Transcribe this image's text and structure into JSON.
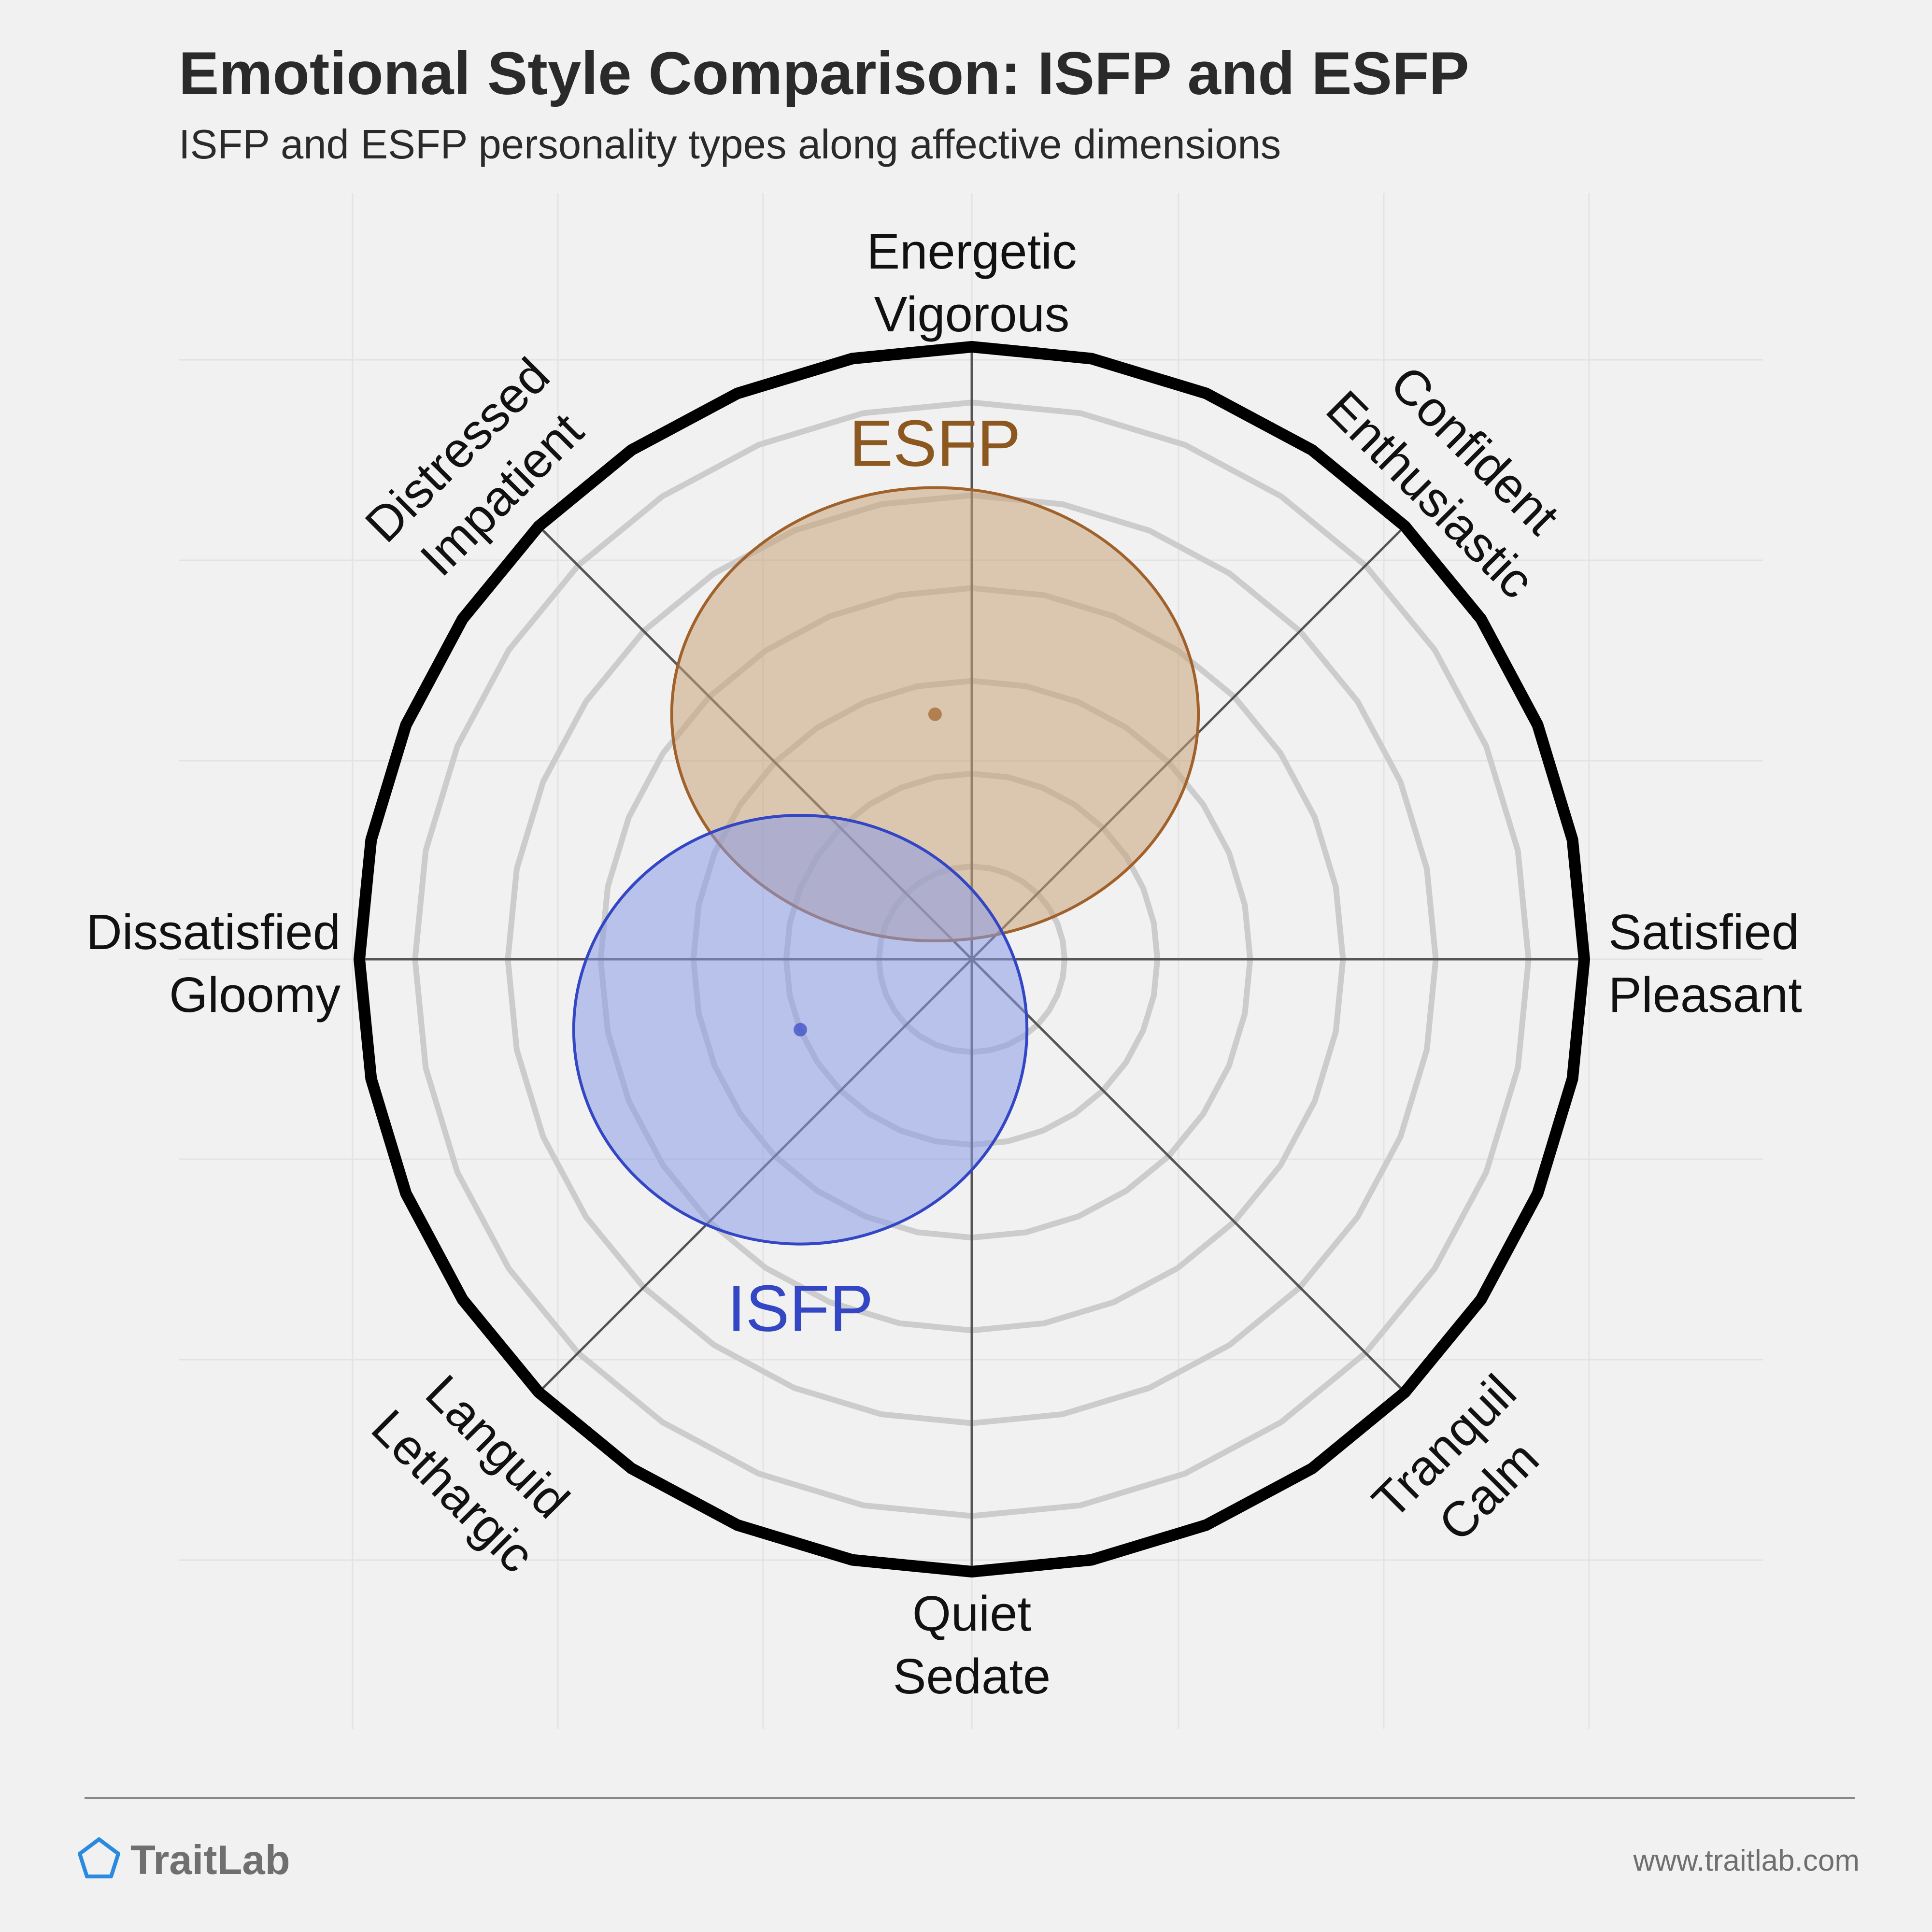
{
  "header": {
    "title": "Emotional Style Comparison: ISFP and ESFP",
    "subtitle": "ISFP and ESFP personality types along affective dimensions"
  },
  "chart_data": {
    "type": "scatter",
    "x_axis": {
      "negative": [
        "Dissatisfied",
        "Gloomy"
      ],
      "positive": [
        "Satisfied",
        "Pleasant"
      ],
      "range": [
        -1,
        1
      ]
    },
    "y_axis": {
      "negative": [
        "Quiet",
        "Sedate"
      ],
      "positive": [
        "Energetic",
        "Vigorous"
      ],
      "range": [
        -1,
        1
      ]
    },
    "diagonal_axes": {
      "top_left": [
        "Distressed",
        "Impatient"
      ],
      "top_right": [
        "Confident",
        "Enthusiastic"
      ],
      "bottom_left": [
        "Languid",
        "Lethargic"
      ],
      "bottom_right": [
        "Tranquil",
        "Calm"
      ]
    },
    "rings": 6,
    "series": [
      {
        "name": "ESFP",
        "x": -0.06,
        "y": 0.4,
        "rx": 0.43,
        "ry": 0.37,
        "color": "#a0622a",
        "fill": "#c8a27a",
        "label_color": "#8c5820",
        "label_position": "top"
      },
      {
        "name": "ISFP",
        "x": -0.28,
        "y": -0.115,
        "rx": 0.37,
        "ry": 0.35,
        "color": "#3346c4",
        "fill": "#8a9be6",
        "label_color": "#3346c4",
        "label_position": "bottom"
      }
    ]
  },
  "footer": {
    "brand": "TraitLab",
    "url": "www.traitlab.com",
    "brand_color": "#2a8ae0"
  }
}
